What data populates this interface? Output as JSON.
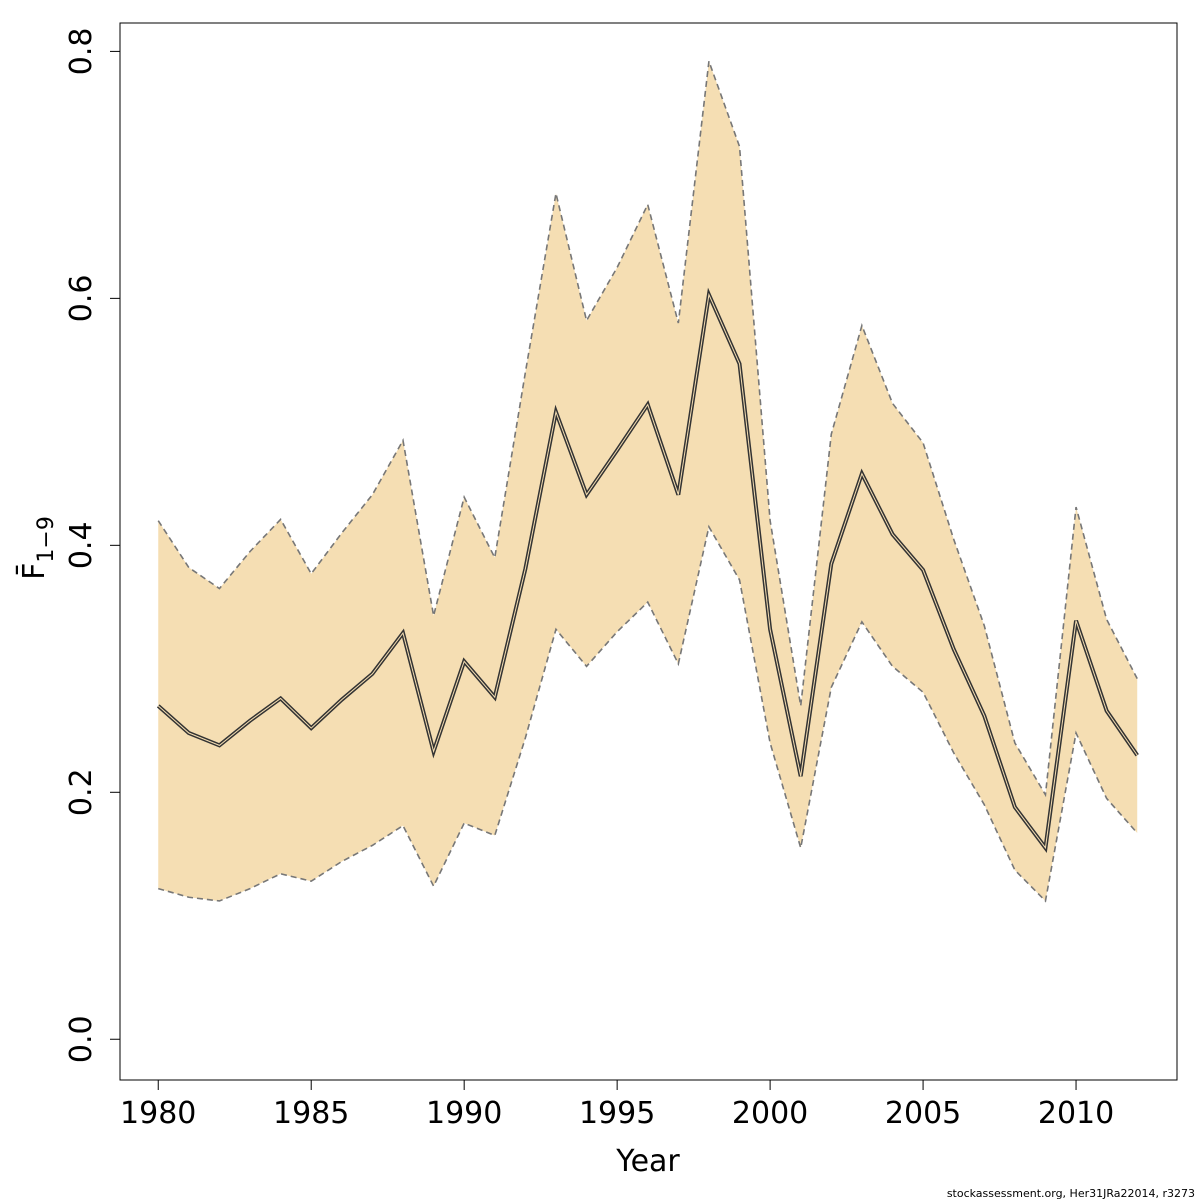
{
  "chart_data": {
    "type": "line",
    "xlabel": "Year",
    "ylabel": "F̄",
    "ylabel_subscript": "1−9",
    "xlim": [
      1978.75,
      2013.3
    ],
    "ylim": [
      -0.033,
      0.823
    ],
    "xticks": [
      1980,
      1985,
      1990,
      1995,
      2000,
      2005,
      2010
    ],
    "yticks": [
      0.0,
      0.2,
      0.4,
      0.6,
      0.8
    ],
    "ytick_labels": [
      "0.0",
      "0.2",
      "0.4",
      "0.6",
      "0.8"
    ],
    "grid": false,
    "legend": "none",
    "x": [
      1980,
      1981,
      1982,
      1983,
      1984,
      1985,
      1986,
      1987,
      1988,
      1989,
      1990,
      1991,
      1992,
      1993,
      1994,
      1995,
      1996,
      1997,
      1998,
      1999,
      2000,
      2001,
      2002,
      2003,
      2004,
      2005,
      2006,
      2007,
      2008,
      2009,
      2010,
      2011,
      2012
    ],
    "series": [
      {
        "role": "estimate",
        "values": [
          0.27,
          0.248,
          0.238,
          0.258,
          0.276,
          0.252,
          0.275,
          0.296,
          0.329,
          0.233,
          0.306,
          0.277,
          0.381,
          0.508,
          0.441,
          0.477,
          0.514,
          0.441,
          0.603,
          0.547,
          0.332,
          0.213,
          0.385,
          0.458,
          0.409,
          0.38,
          0.316,
          0.262,
          0.188,
          0.155,
          0.339,
          0.266,
          0.23
        ]
      },
      {
        "role": "upper",
        "values": [
          0.42,
          0.382,
          0.365,
          0.395,
          0.421,
          0.377,
          0.41,
          0.441,
          0.485,
          0.343,
          0.439,
          0.39,
          0.54,
          0.685,
          0.582,
          0.625,
          0.676,
          0.58,
          0.792,
          0.723,
          0.42,
          0.27,
          0.49,
          0.578,
          0.515,
          0.483,
          0.405,
          0.335,
          0.24,
          0.198,
          0.431,
          0.34,
          0.292
        ]
      },
      {
        "role": "lower",
        "values": [
          0.122,
          0.115,
          0.112,
          0.122,
          0.134,
          0.128,
          0.144,
          0.157,
          0.173,
          0.124,
          0.175,
          0.165,
          0.244,
          0.332,
          0.302,
          0.33,
          0.354,
          0.304,
          0.415,
          0.372,
          0.24,
          0.155,
          0.285,
          0.338,
          0.302,
          0.281,
          0.232,
          0.19,
          0.137,
          0.112,
          0.248,
          0.195,
          0.167
        ]
      }
    ],
    "colors": {
      "band_fill": "#f5deb3",
      "band_edge": "#777777",
      "estimate_outer": "#333333",
      "estimate_inner": "#f5deb3",
      "axis": "#000000",
      "box": "#000000"
    }
  },
  "footer": {
    "credit": "stockassessment.org, Her31JRa22014, r3273"
  }
}
